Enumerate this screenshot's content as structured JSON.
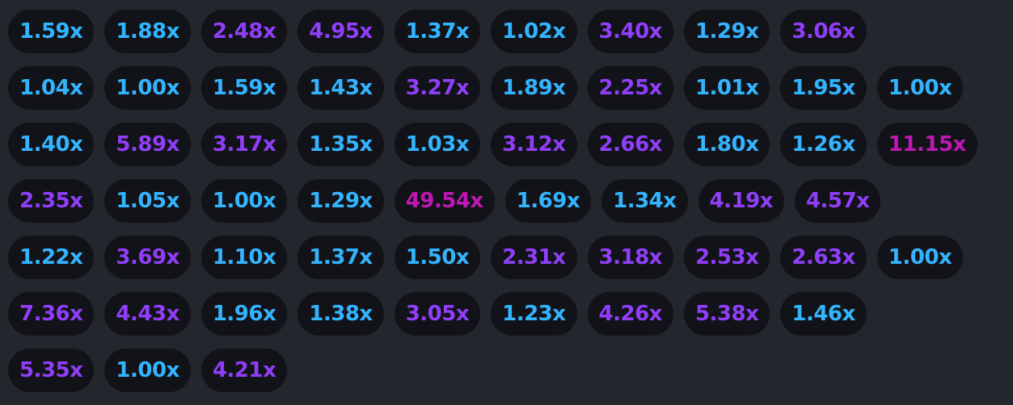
{
  "colors": {
    "background": "#24262e",
    "chip_background": "#111318",
    "low": "#34b4ff",
    "mid": "#913ef8",
    "high": "#c017b4"
  },
  "multiplier_history": {
    "rows": [
      [
        {
          "label": "1.59x",
          "tier": "low"
        },
        {
          "label": "1.88x",
          "tier": "low"
        },
        {
          "label": "2.48x",
          "tier": "mid"
        },
        {
          "label": "4.95x",
          "tier": "mid"
        },
        {
          "label": "1.37x",
          "tier": "low"
        },
        {
          "label": "1.02x",
          "tier": "low"
        },
        {
          "label": "3.40x",
          "tier": "mid"
        },
        {
          "label": "1.29x",
          "tier": "low"
        },
        {
          "label": "3.06x",
          "tier": "mid"
        }
      ],
      [
        {
          "label": "1.04x",
          "tier": "low"
        },
        {
          "label": "1.00x",
          "tier": "low"
        },
        {
          "label": "1.59x",
          "tier": "low"
        },
        {
          "label": "1.43x",
          "tier": "low"
        },
        {
          "label": "3.27x",
          "tier": "mid"
        },
        {
          "label": "1.89x",
          "tier": "low"
        },
        {
          "label": "2.25x",
          "tier": "mid"
        },
        {
          "label": "1.01x",
          "tier": "low"
        },
        {
          "label": "1.95x",
          "tier": "low"
        },
        {
          "label": "1.00x",
          "tier": "low"
        }
      ],
      [
        {
          "label": "1.40x",
          "tier": "low"
        },
        {
          "label": "5.89x",
          "tier": "mid"
        },
        {
          "label": "3.17x",
          "tier": "mid"
        },
        {
          "label": "1.35x",
          "tier": "low"
        },
        {
          "label": "1.03x",
          "tier": "low"
        },
        {
          "label": "3.12x",
          "tier": "mid"
        },
        {
          "label": "2.66x",
          "tier": "mid"
        },
        {
          "label": "1.80x",
          "tier": "low"
        },
        {
          "label": "1.26x",
          "tier": "low"
        },
        {
          "label": "11.15x",
          "tier": "high"
        }
      ],
      [
        {
          "label": "2.35x",
          "tier": "mid"
        },
        {
          "label": "1.05x",
          "tier": "low"
        },
        {
          "label": "1.00x",
          "tier": "low"
        },
        {
          "label": "1.29x",
          "tier": "low"
        },
        {
          "label": "49.54x",
          "tier": "high"
        },
        {
          "label": "1.69x",
          "tier": "low"
        },
        {
          "label": "1.34x",
          "tier": "low"
        },
        {
          "label": "4.19x",
          "tier": "mid"
        },
        {
          "label": "4.57x",
          "tier": "mid"
        }
      ],
      [
        {
          "label": "1.22x",
          "tier": "low"
        },
        {
          "label": "3.69x",
          "tier": "mid"
        },
        {
          "label": "1.10x",
          "tier": "low"
        },
        {
          "label": "1.37x",
          "tier": "low"
        },
        {
          "label": "1.50x",
          "tier": "low"
        },
        {
          "label": "2.31x",
          "tier": "mid"
        },
        {
          "label": "3.18x",
          "tier": "mid"
        },
        {
          "label": "2.53x",
          "tier": "mid"
        },
        {
          "label": "2.63x",
          "tier": "mid"
        },
        {
          "label": "1.00x",
          "tier": "low"
        }
      ],
      [
        {
          "label": "7.36x",
          "tier": "mid"
        },
        {
          "label": "4.43x",
          "tier": "mid"
        },
        {
          "label": "1.96x",
          "tier": "low"
        },
        {
          "label": "1.38x",
          "tier": "low"
        },
        {
          "label": "3.05x",
          "tier": "mid"
        },
        {
          "label": "1.23x",
          "tier": "low"
        },
        {
          "label": "4.26x",
          "tier": "mid"
        },
        {
          "label": "5.38x",
          "tier": "mid"
        },
        {
          "label": "1.46x",
          "tier": "low"
        }
      ],
      [
        {
          "label": "5.35x",
          "tier": "mid"
        },
        {
          "label": "1.00x",
          "tier": "low"
        },
        {
          "label": "4.21x",
          "tier": "mid"
        }
      ]
    ]
  }
}
